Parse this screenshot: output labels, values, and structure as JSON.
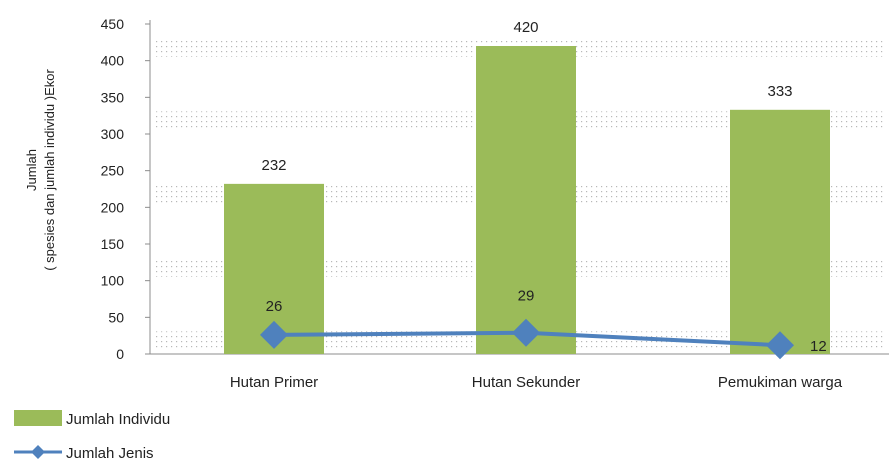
{
  "chart_data": {
    "type": "bar",
    "categories": [
      "Hutan Primer",
      "Hutan Sekunder",
      "Pemukiman warga"
    ],
    "series": [
      {
        "name": "Jumlah Individu",
        "type": "bar",
        "values": [
          232,
          420,
          333
        ],
        "color": "#9bbb59"
      },
      {
        "name": "Jumlah Jenis",
        "type": "line",
        "values": [
          26,
          29,
          12
        ],
        "color": "#4f81bd"
      }
    ],
    "ylabel": [
      "Jumlah",
      "( spesies dan jumlah individu )Ekor"
    ],
    "ylim": [
      0,
      450
    ],
    "yticks": [
      0,
      50,
      100,
      150,
      200,
      250,
      300,
      350,
      400,
      450
    ],
    "grid": "dotted bands",
    "legend_position": "bottom-left"
  }
}
